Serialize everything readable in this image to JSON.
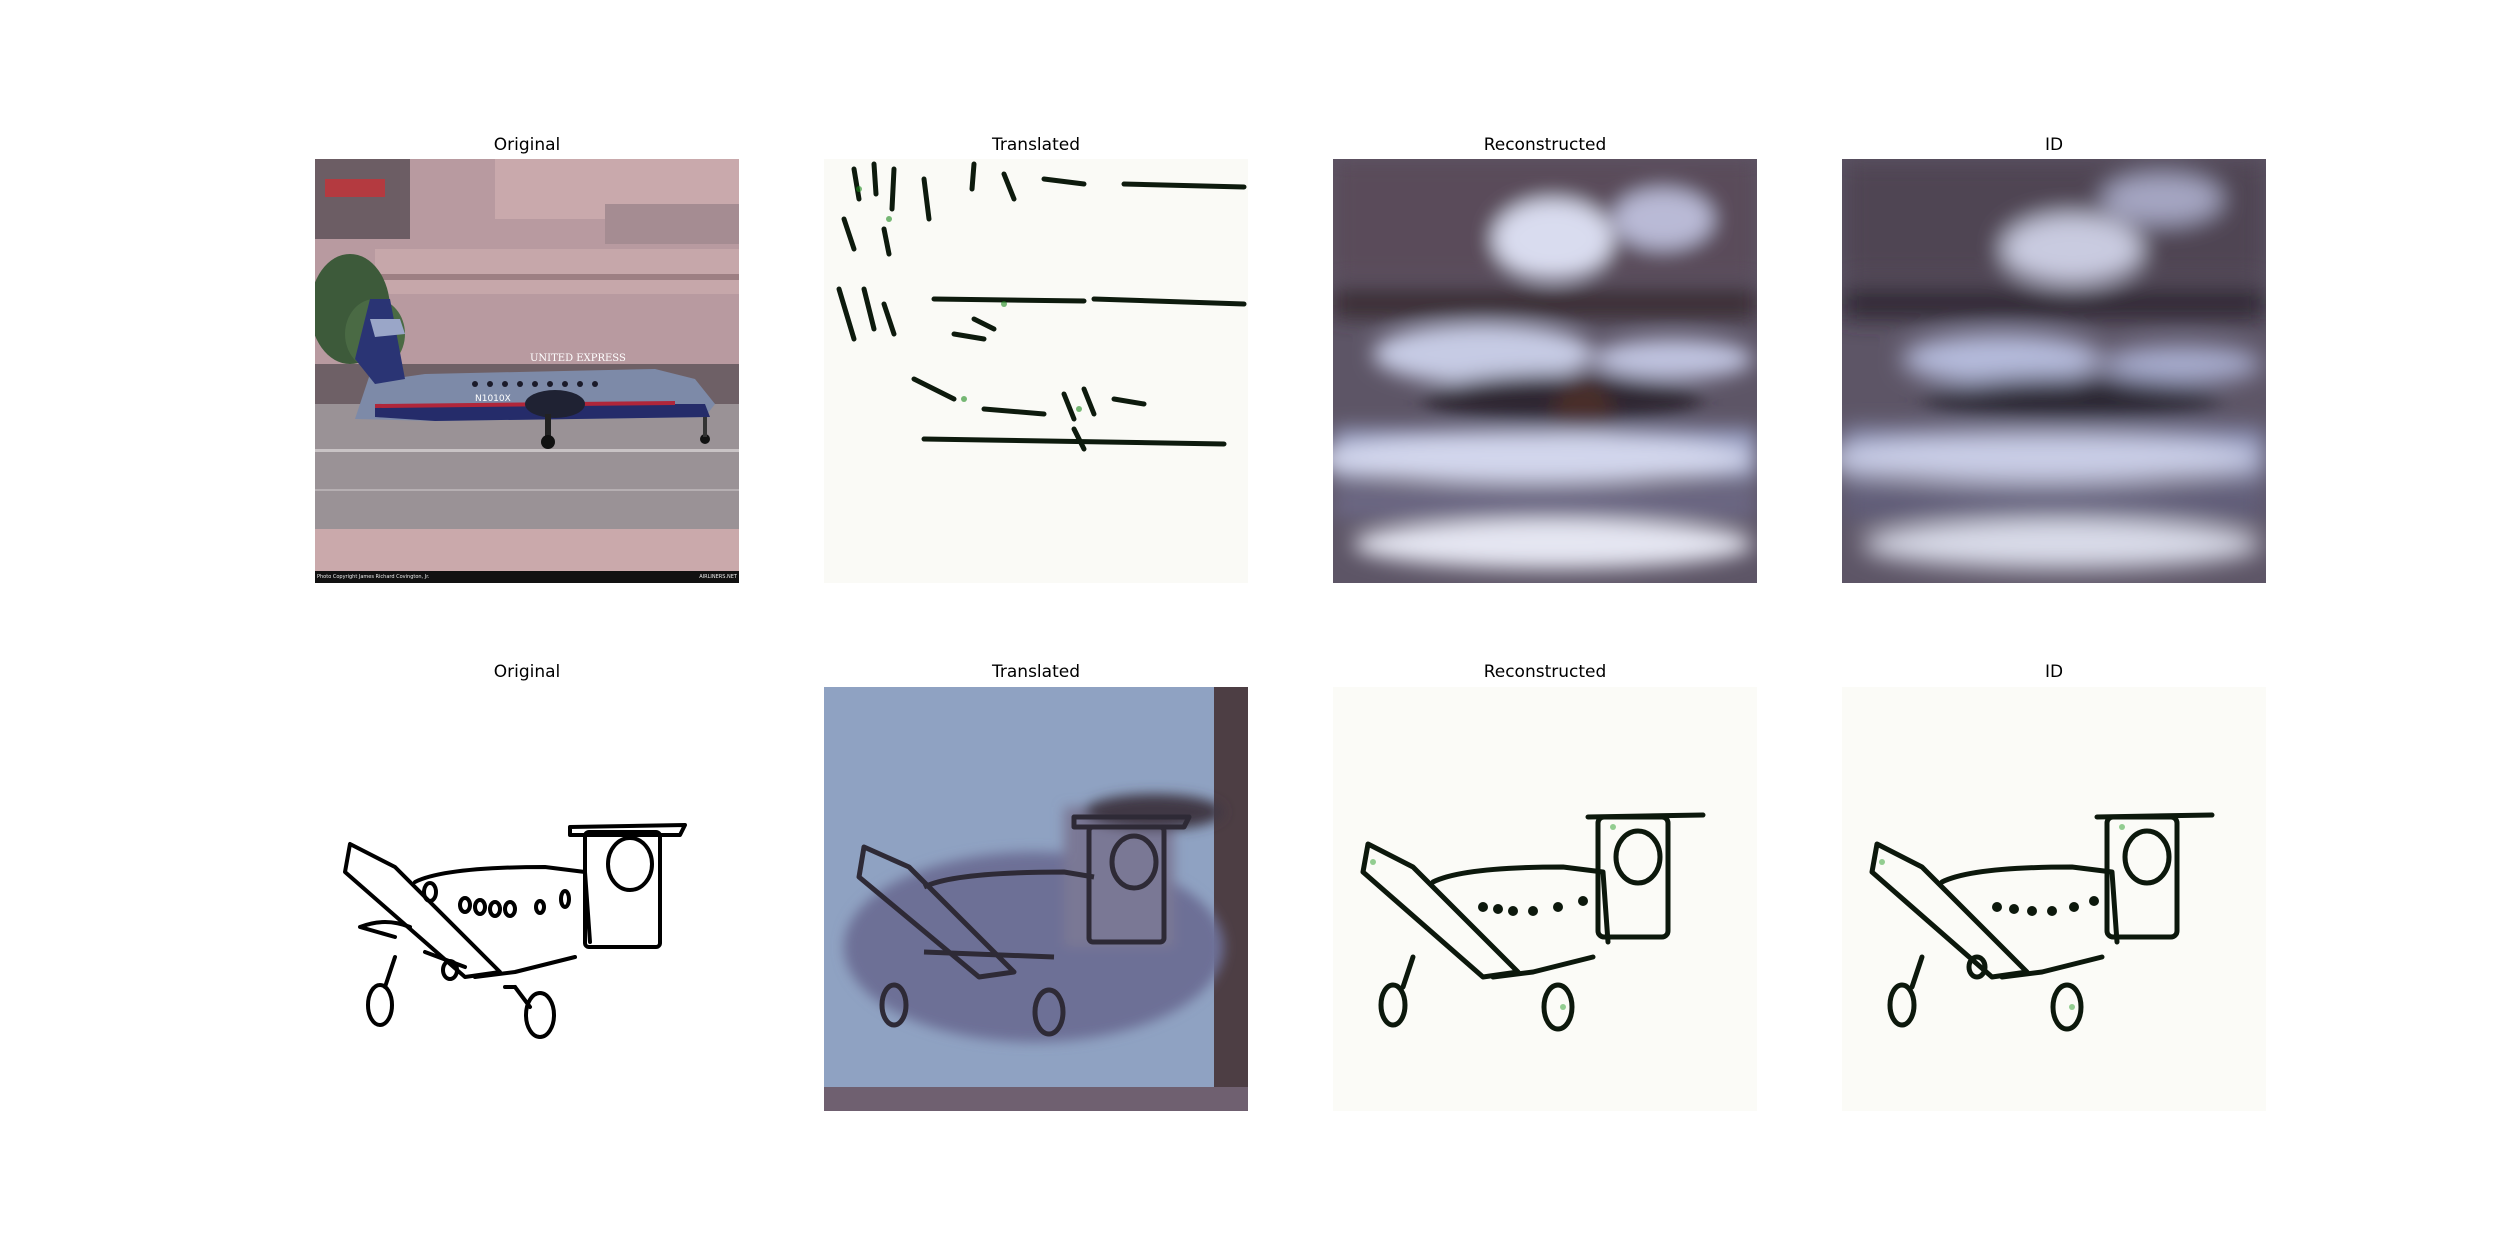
{
  "figure": {
    "rows": [
      {
        "panels": [
          {
            "title": "Original",
            "content": "photo-airplane"
          },
          {
            "title": "Translated",
            "content": "sketch-from-photo"
          },
          {
            "title": "Reconstructed",
            "content": "blurry-photo"
          },
          {
            "title": "ID",
            "content": "blurry-photo"
          }
        ]
      },
      {
        "panels": [
          {
            "title": "Original",
            "content": "sketch-airplane"
          },
          {
            "title": "Translated",
            "content": "photo-from-sketch"
          },
          {
            "title": "Reconstructed",
            "content": "sketch-reconstruction"
          },
          {
            "title": "ID",
            "content": "sketch-reconstruction"
          }
        ]
      }
    ]
  },
  "photo": {
    "tail_text": "UNITED EXPRESS",
    "registration": "N1010X",
    "credit": "Photo Copyright James Richard Covington, Jr.",
    "watermark": "AIRLINERS.NET"
  }
}
